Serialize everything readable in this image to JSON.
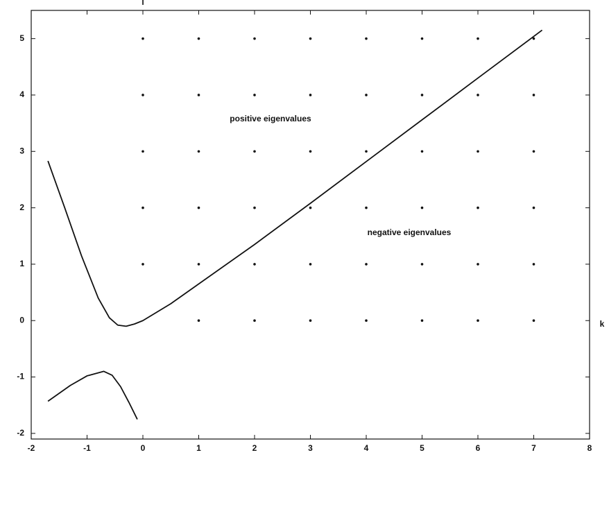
{
  "chart_data": {
    "type": "line",
    "x_label": "k",
    "y_label": "l",
    "annotations": [
      "positive eigenvalues",
      "negative eigenvalues"
    ],
    "series": [
      {
        "color": "#111111",
        "x": [
          -1.7,
          -1.4,
          -1.1,
          -0.8,
          -0.6,
          -0.45,
          -0.3,
          -0.15,
          0,
          0.5,
          1,
          2,
          3,
          4,
          5,
          6,
          7.15
        ],
        "values": [
          2.83,
          2.0,
          1.15,
          0.4,
          0.05,
          -0.08,
          -0.1,
          -0.06,
          0,
          0.3,
          0.65,
          1.35,
          2.08,
          2.82,
          3.56,
          4.3,
          5.15
        ]
      },
      {
        "color": "#111111",
        "x": [
          -1.7,
          -1.3,
          -1.0,
          -0.7,
          -0.55,
          -0.4,
          -0.25,
          -0.1
        ],
        "values": [
          -1.43,
          -1.15,
          -0.98,
          -0.9,
          -0.97,
          -1.17,
          -1.45,
          -1.75
        ]
      }
    ],
    "points": {
      "color": "#111111",
      "x": [
        0,
        0,
        0,
        0,
        0,
        1,
        1,
        1,
        1,
        1,
        1,
        2,
        2,
        2,
        2,
        2,
        2,
        3,
        3,
        3,
        3,
        3,
        3,
        4,
        4,
        4,
        4,
        4,
        4,
        5,
        5,
        5,
        5,
        5,
        5,
        6,
        6,
        6,
        6,
        6,
        6,
        7,
        7,
        7,
        7,
        7,
        7
      ],
      "y": [
        1,
        2,
        3,
        4,
        5,
        0,
        1,
        2,
        3,
        4,
        5,
        0,
        1,
        2,
        3,
        4,
        5,
        0,
        1,
        2,
        3,
        4,
        5,
        0,
        1,
        2,
        3,
        4,
        5,
        0,
        1,
        2,
        3,
        4,
        5,
        0,
        1,
        2,
        3,
        4,
        5,
        0,
        1,
        2,
        3,
        4,
        5
      ]
    },
    "xlim": [
      -2,
      8
    ],
    "xticks": [
      -2,
      -1,
      0,
      1,
      2,
      3,
      4,
      5,
      6,
      7,
      8
    ],
    "ylim": [
      -2.1,
      5.5
    ],
    "yticks": [
      -2,
      -1,
      0,
      1,
      2,
      3,
      4,
      5
    ]
  }
}
